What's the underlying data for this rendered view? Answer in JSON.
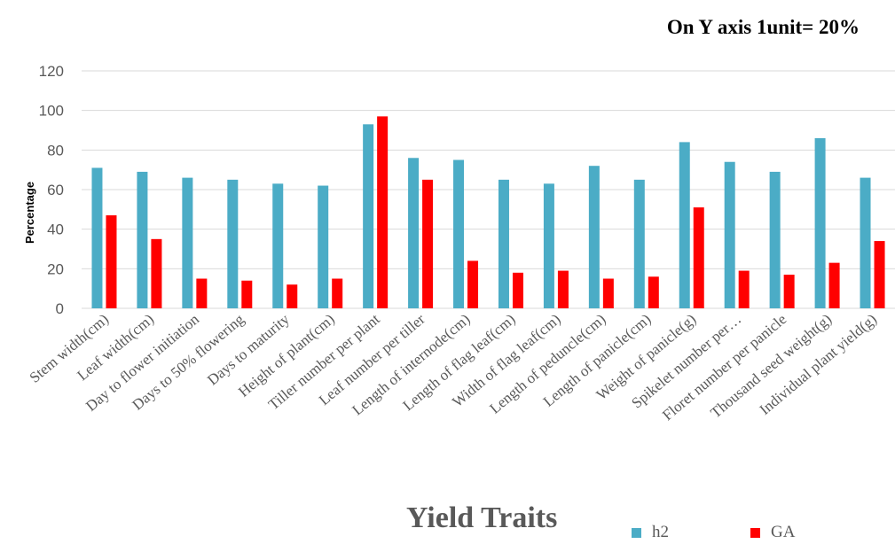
{
  "note": "On Y axis 1unit= 20%",
  "chart_data": {
    "type": "bar",
    "title": "",
    "xlabel": "Yield Traits",
    "ylabel": "Percentage",
    "ylim": [
      0,
      120
    ],
    "yticks": [
      0,
      20,
      40,
      60,
      80,
      100,
      120
    ],
    "grid": true,
    "legend_position": "bottom-right",
    "categories": [
      "Stem width(cm)",
      "Leaf width(cm)",
      "Day to flower initiation",
      "Days to 50% flowering",
      "Days to maturity",
      "Height of plant(cm)",
      "Tiller number per plant",
      "Leaf number per tiller",
      "Length of internode(cm)",
      "Length of flag leaf(cm)",
      "Width of flag leaf(cm)",
      "Length of peduncle(cm)",
      "Length of panicle(cm)",
      "Weight of panicle(g)",
      "Spikelet number per…",
      "Floret number per panicle",
      "Thousand seed weight(g)",
      "Individual plant yield(g)"
    ],
    "series": [
      {
        "name": "h2",
        "color": "#4BACC6",
        "values": [
          71,
          69,
          66,
          65,
          63,
          62,
          93,
          76,
          75,
          65,
          63,
          72,
          65,
          84,
          74,
          69,
          86,
          66
        ]
      },
      {
        "name": "GA",
        "color": "#FF0000",
        "values": [
          47,
          35,
          15,
          14,
          12,
          15,
          97,
          65,
          24,
          18,
          19,
          15,
          16,
          51,
          19,
          17,
          23,
          34
        ]
      }
    ]
  }
}
